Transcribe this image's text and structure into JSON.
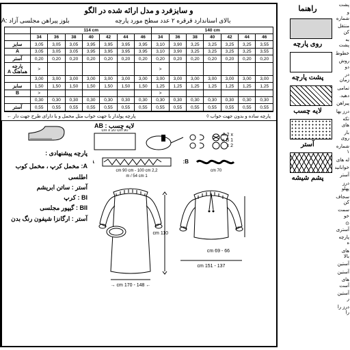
{
  "legend": {
    "title": "راهنما",
    "items": [
      {
        "label": "روی پارچه",
        "cls": "sw-face"
      },
      {
        "label": "پشت پارچه",
        "cls": "sw-back"
      },
      {
        "label": "لایه چسب",
        "cls": "sw-int"
      },
      {
        "label": "آستر",
        "cls": "sw-lin"
      },
      {
        "label": "پشم شیشه",
        "cls": "sw-glass"
      }
    ]
  },
  "header": {
    "title": "و سایزفرد و مدل ارائه شده در الگو",
    "sub_right": "بالای استاندارد قرقره ۲ عدد سطح مورد پارچه",
    "sub_left": "بلوز پیراهن مجلسی آزاد :A"
  },
  "table": {
    "widths": [
      "114 cm",
      "140 cm"
    ],
    "sizes": [
      "34",
      "36",
      "38",
      "40",
      "42",
      "44",
      "46",
      "34",
      "36",
      "38",
      "40",
      "42",
      "44",
      "46"
    ],
    "rows": [
      {
        "label": "سایز",
        "cells": [
          "3,05",
          "3,05",
          "3,05",
          "3,95",
          "3,95",
          "3,95",
          "3,95",
          "3,10",
          "3,90",
          "3,25",
          "3,25",
          "3,25",
          "3,25",
          "3,55"
        ]
      },
      {
        "label": "A",
        "cells": [
          "3,05",
          "3,05",
          "3,05",
          "3,95",
          "3,95",
          "3,95",
          "3,95",
          "3,10",
          "3,90",
          "3,25",
          "3,25",
          "3,25",
          "3,25",
          "3,55"
        ]
      },
      {
        "label": "آستر",
        "cells": [
          "0,20",
          "0,20",
          "0,20",
          "0,20",
          "0,20",
          "0,20",
          "0,20",
          "0,20",
          "0,20",
          "0,20",
          "0,20",
          "0,20",
          "0,20",
          "0,20"
        ]
      },
      {
        "label": "پارچه هماهنگ A",
        "cells": [
          ">",
          "",
          "",
          "",
          "",
          "",
          "",
          ">",
          "",
          "",
          "",
          "",
          "",
          ""
        ]
      },
      {
        "label": "",
        "cells": [
          "3,00",
          "3,00",
          "3,00",
          "3,00",
          "3,00",
          "3,00",
          "3,00",
          "3,00",
          "3,00",
          "3,00",
          "3,00",
          "3,00",
          "3,00",
          "3,00"
        ]
      },
      {
        "label": "سایز",
        "cells": [
          "1,50",
          "1,50",
          "1,50",
          "1,50",
          "1,50",
          "1,50",
          "1,50",
          "1,25",
          "1,25",
          "1,25",
          "1,25",
          "1,25",
          "1,25",
          "1,25"
        ]
      },
      {
        "label": "B",
        "cells": [
          ">",
          "",
          "",
          "",
          "",
          "",
          "",
          ">",
          "",
          "",
          "",
          "",
          "",
          ""
        ]
      },
      {
        "label": "",
        "cells": [
          "0,30",
          "0,30",
          "0,30",
          "0,30",
          "0,30",
          "0,30",
          "0,30",
          "0,30",
          "0,30",
          "0,30",
          "0,30",
          "0,30",
          "0,30",
          "0,30"
        ]
      },
      {
        "label": "آستر",
        "cells": [
          "0,55",
          "0,55",
          "0,55",
          "0,55",
          "0,55",
          "0,55",
          "0,55",
          "0,55",
          "0,55",
          "0,55",
          "0,55",
          "0,55",
          "0,55",
          "0,55"
        ]
      }
    ],
    "note_left": "پارچه پولدار با جهت خواب مثل مخمل و یا دارای طرح جهت دار ←",
    "note_right": "پارچه ساده و بدون جهت خواب ◊"
  },
  "lower_right": {
    "title": "پارچه پیشنهادی :",
    "lines": [
      "A: مخمل کرپ ، مخمل کوب اطلسی",
      "آستر : ساتن ابریشم",
      "BI : کرپ",
      "BII : گیپور مجلسی",
      "آستر : ارگانزا شیفون رنگ بدن"
    ]
  },
  "lower_left": {
    "title": "لایه چسب : AB",
    "notions_dims": "90 cm x 20 cm",
    "notions_text": "A 2 x\n1 x B\n2 x",
    "zig": {
      "A": "A:",
      "B": "B:",
      "dimA": "2,2 cm 90 cm - 100 cm",
      "dimB": "70 cm",
      "dimC": "1 m / 54 cm"
    },
    "garment_dims": {
      "A_h": "110 cm",
      "A_w": "← 148 - 170 cm →",
      "B_h": "66 - 69 cm",
      "B_w": "137 - 151 cm"
    }
  },
  "side_text": [
    "پشت",
    "و شماره",
    "منتقل کن",
    "به پشت",
    "خطوط",
    "روش دو",
    "در زمان",
    "تمامی",
    "دهید.",
    "پیراهن",
    "درز یها",
    "تکه های",
    "بار روی",
    "شماره ۱",
    "له های",
    "خوابانید",
    "آستر",
    "درز پهلو",
    "سجاف کن",
    "سمت خو",
    "⊙ آستری",
    "پارچه ه",
    "های بالا",
    "آستین",
    "آستین",
    "های آست",
    "آستین ر",
    "درز را را"
  ],
  "colors": {
    "border": "#000000",
    "swatch_gray": "#d6d6d6",
    "bg": "#ffffff"
  }
}
